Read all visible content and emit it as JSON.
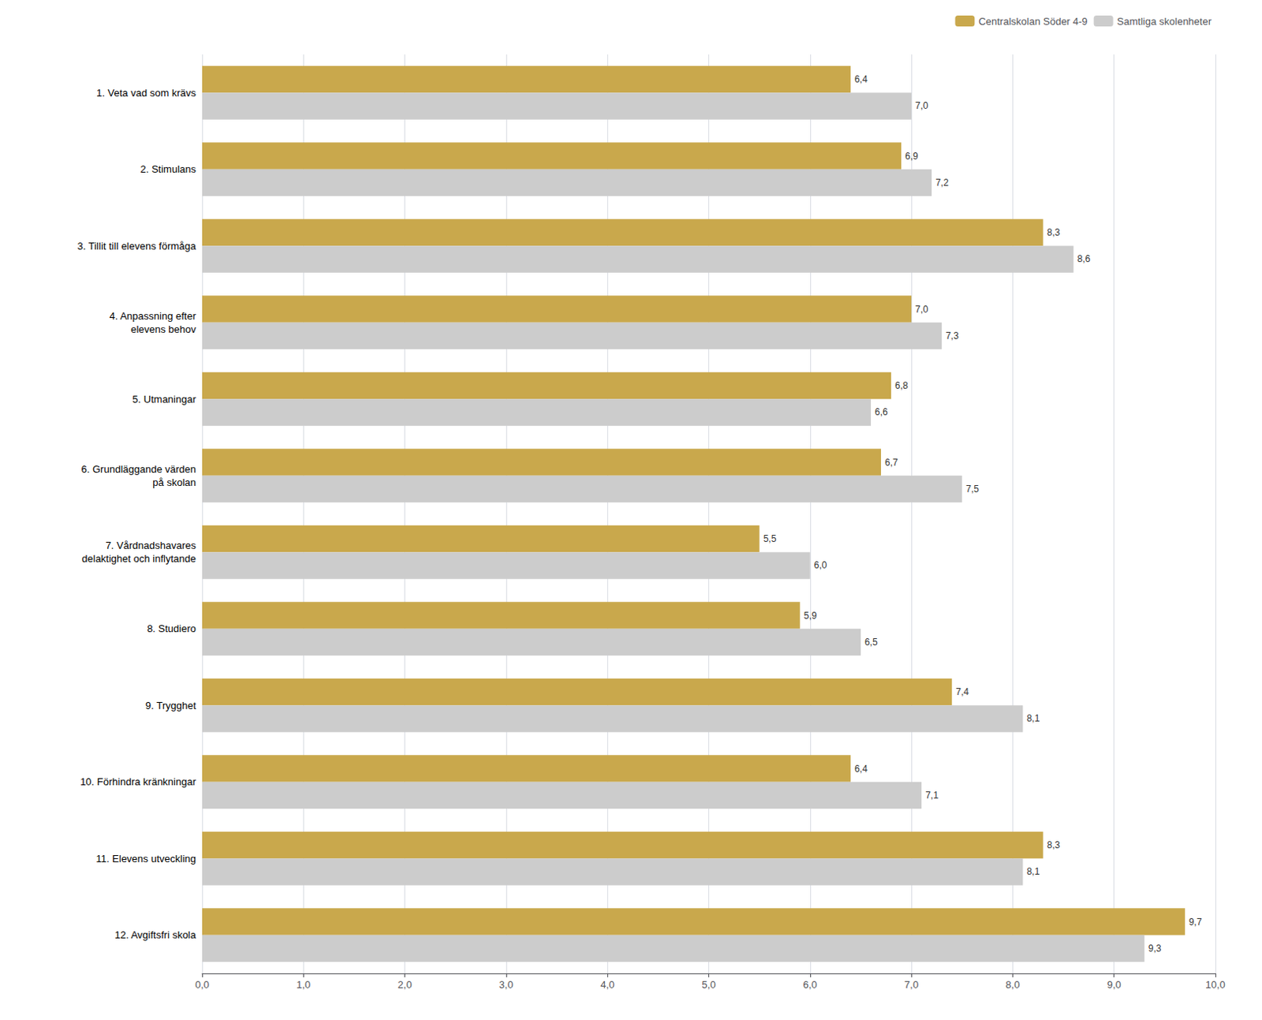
{
  "chart_data": {
    "type": "bar",
    "orientation": "horizontal",
    "categories": [
      "1. Veta vad som krävs",
      "2. Stimulans",
      "3. Tillit till elevens förmåga",
      "4. Anpassning efter\nelevens behov",
      "5. Utmaningar",
      "6. Grundläggande värden\npå skolan",
      "7. Vårdnadshavares\ndelaktighet och inflytande",
      "8. Studiero",
      "9. Trygghet",
      "10. Förhindra kränkningar",
      "11. Elevens utveckling",
      "12. Avgiftsfri skola"
    ],
    "series": [
      {
        "name": "Centralskolan Söder 4-9",
        "color": "#C9A84C",
        "values": [
          6.4,
          6.9,
          8.3,
          7.0,
          6.8,
          6.7,
          5.5,
          5.9,
          7.4,
          6.4,
          8.3,
          9.7
        ],
        "value_labels": [
          "6,4",
          "6,9",
          "8,3",
          "7,0",
          "6,8",
          "6,7",
          "5,5",
          "5,9",
          "7,4",
          "6,4",
          "8,3",
          "9,7"
        ]
      },
      {
        "name": "Samtliga skolenheter",
        "color": "#CCCCCC",
        "values": [
          7.0,
          7.2,
          8.6,
          7.3,
          6.6,
          7.5,
          6.0,
          6.5,
          8.1,
          7.1,
          8.1,
          9.3
        ],
        "value_labels": [
          "7,0",
          "7,2",
          "8,6",
          "7,3",
          "6,6",
          "7,5",
          "6,0",
          "6,5",
          "8,1",
          "7,1",
          "8,1",
          "9,3"
        ]
      }
    ],
    "xlim": [
      0,
      10
    ],
    "xticks": [
      {
        "value": 0,
        "label": "0,0"
      },
      {
        "value": 1,
        "label": "1,0"
      },
      {
        "value": 2,
        "label": "2,0"
      },
      {
        "value": 3,
        "label": "3,0"
      },
      {
        "value": 4,
        "label": "4,0"
      },
      {
        "value": 5,
        "label": "5,0"
      },
      {
        "value": 6,
        "label": "6,0"
      },
      {
        "value": 7,
        "label": "7,0"
      },
      {
        "value": 8,
        "label": "8,0"
      },
      {
        "value": 9,
        "label": "9,0"
      },
      {
        "value": 10,
        "label": "10,0"
      }
    ],
    "grid": true,
    "data_labels": true,
    "legend": "top"
  }
}
